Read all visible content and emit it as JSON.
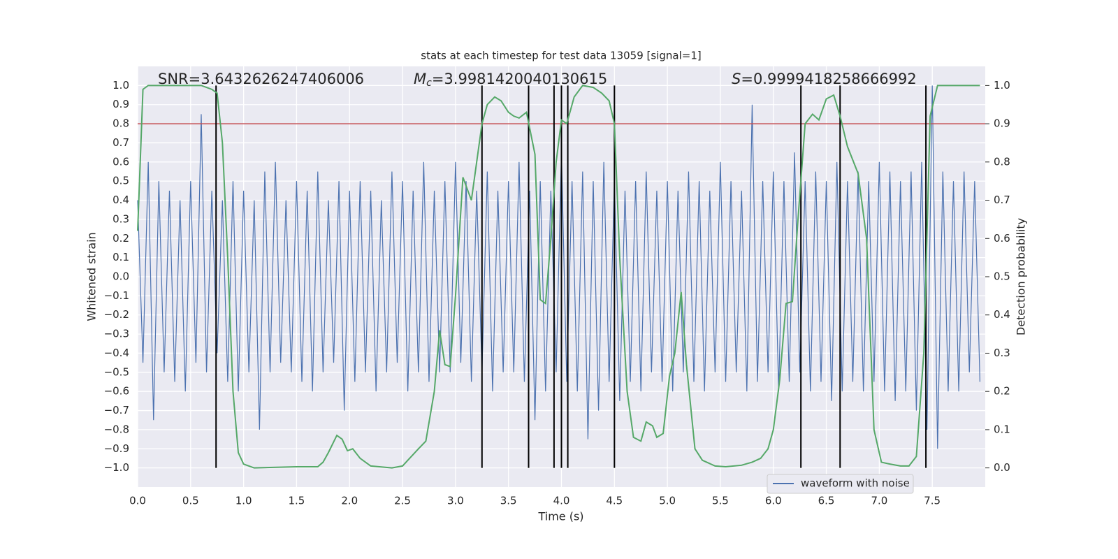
{
  "chart_data": {
    "type": "line",
    "title": "stats at each timestep for test data 13059 [signal=1]",
    "xlabel": "Time (s)",
    "ylabel": "Whitened strain",
    "y2label": "Detection probability",
    "annotations": {
      "snr": "SNR=3.6432626247406006",
      "mc": {
        "symbol": "M",
        "subscript": "c",
        "value": "=3.9981420040130615"
      },
      "s": {
        "symbol": "S",
        "value": "=0.9999418258666992"
      }
    },
    "xlim": [
      0,
      8
    ],
    "ylim": [
      -1.1,
      1.1
    ],
    "y2lim": [
      -0.05,
      1.05
    ],
    "xticks": [
      {
        "value": 0,
        "label": "0.0"
      },
      0.5,
      {
        "value": 1,
        "label": "1.0"
      },
      1.5,
      {
        "value": 2,
        "label": "2.0"
      },
      2.5,
      {
        "value": 3,
        "label": "3.0"
      },
      3.5,
      {
        "value": 4,
        "label": "4.0"
      },
      4.5,
      {
        "value": 5,
        "label": "5.0"
      },
      5.5,
      {
        "value": 6,
        "label": "6.0"
      },
      6.5,
      {
        "value": 7,
        "label": "7.0"
      },
      7.5
    ],
    "yticks": [
      {
        "value": -1,
        "label": "−1.0"
      },
      {
        "value": -0.9,
        "label": "−0.9"
      },
      {
        "value": -0.8,
        "label": "−0.8"
      },
      {
        "value": -0.7,
        "label": "−0.7"
      },
      {
        "value": -0.6,
        "label": "−0.6"
      },
      {
        "value": -0.5,
        "label": "−0.5"
      },
      {
        "value": -0.4,
        "label": "−0.4"
      },
      {
        "value": -0.3,
        "label": "−0.3"
      },
      {
        "value": -0.2,
        "label": "−0.2"
      },
      {
        "value": -0.1,
        "label": "−0.1"
      },
      {
        "value": 0,
        "label": "0.0"
      },
      0.1,
      0.2,
      0.3,
      0.4,
      0.5,
      0.6,
      0.7,
      0.8,
      0.9,
      {
        "value": 1,
        "label": "1.0"
      }
    ],
    "y2ticks": [
      {
        "value": 0,
        "label": "0.0"
      },
      0.1,
      0.2,
      0.3,
      0.4,
      0.5,
      0.6,
      0.7,
      0.8,
      0.9,
      {
        "value": 1,
        "label": "1.0"
      }
    ],
    "grid": true,
    "legend": "lower right",
    "hline": {
      "value": 0.8,
      "color": "#c44e52"
    },
    "vlines": {
      "x": [
        0.74,
        3.25,
        3.69,
        3.93,
        4.0,
        4.06,
        4.5,
        6.26,
        6.63,
        7.44
      ],
      "range": [
        -1,
        1
      ],
      "color": "#000000"
    },
    "series": [
      {
        "name": "waveform with noise",
        "color": "#4c72b0",
        "x": [
          0,
          0.05,
          0.1,
          0.15,
          0.2,
          0.25,
          0.3,
          0.35,
          0.4,
          0.45,
          0.5,
          0.55,
          0.6,
          0.65,
          0.7,
          0.75,
          0.8,
          0.85,
          0.9,
          0.95,
          1,
          1.05,
          1.1,
          1.15,
          1.2,
          1.25,
          1.3,
          1.35,
          1.4,
          1.45,
          1.5,
          1.55,
          1.6,
          1.65,
          1.7,
          1.75,
          1.8,
          1.85,
          1.9,
          1.95,
          2,
          2.05,
          2.1,
          2.15,
          2.2,
          2.25,
          2.3,
          2.35,
          2.4,
          2.45,
          2.5,
          2.55,
          2.6,
          2.65,
          2.7,
          2.75,
          2.8,
          2.85,
          2.9,
          2.95,
          3,
          3.05,
          3.1,
          3.15,
          3.2,
          3.25,
          3.3,
          3.35,
          3.4,
          3.45,
          3.5,
          3.55,
          3.6,
          3.65,
          3.7,
          3.75,
          3.8,
          3.85,
          3.9,
          3.95,
          4,
          4.05,
          4.1,
          4.15,
          4.2,
          4.25,
          4.3,
          4.35,
          4.4,
          4.45,
          4.5,
          4.55,
          4.6,
          4.65,
          4.7,
          4.75,
          4.8,
          4.85,
          4.9,
          4.95,
          5,
          5.05,
          5.1,
          5.15,
          5.2,
          5.25,
          5.3,
          5.35,
          5.4,
          5.45,
          5.5,
          5.55,
          5.6,
          5.65,
          5.7,
          5.75,
          5.8,
          5.85,
          5.9,
          5.95,
          6,
          6.05,
          6.1,
          6.15,
          6.2,
          6.25,
          6.3,
          6.35,
          6.4,
          6.45,
          6.5,
          6.55,
          6.6,
          6.65,
          6.7,
          6.75,
          6.8,
          6.85,
          6.9,
          6.95,
          7,
          7.05,
          7.1,
          7.15,
          7.2,
          7.25,
          7.3,
          7.35,
          7.4,
          7.45,
          7.5,
          7.55,
          7.6,
          7.65,
          7.7,
          7.75,
          7.8,
          7.85,
          7.9,
          7.95
        ],
        "values": [
          0.4,
          -0.45,
          0.6,
          -0.75,
          0.5,
          -0.5,
          0.45,
          -0.55,
          0.4,
          -0.6,
          0.5,
          -0.45,
          0.85,
          -0.5,
          0.45,
          -0.4,
          0.4,
          -0.55,
          0.5,
          -0.6,
          0.45,
          -0.5,
          0.4,
          -0.8,
          0.55,
          -0.5,
          0.6,
          -0.45,
          0.4,
          -0.5,
          0.5,
          -0.55,
          0.45,
          -0.6,
          0.55,
          -0.5,
          0.4,
          -0.45,
          0.5,
          -0.7,
          0.45,
          -0.55,
          0.5,
          -0.5,
          0.45,
          -0.6,
          0.4,
          -0.5,
          0.55,
          -0.45,
          0.5,
          -0.6,
          0.45,
          -0.5,
          0.6,
          -0.55,
          0.45,
          -0.5,
          0.5,
          -0.5,
          0.6,
          -0.45,
          0.5,
          -0.55,
          0.45,
          -0.5,
          0.55,
          -0.6,
          0.45,
          -0.5,
          0.5,
          -0.5,
          0.6,
          -0.55,
          0.45,
          -0.75,
          0.5,
          -0.6,
          0.45,
          -0.5,
          0.65,
          -0.55,
          0.5,
          -0.6,
          0.55,
          -0.85,
          0.5,
          -0.7,
          0.6,
          -0.55,
          0.5,
          -0.65,
          0.45,
          -0.55,
          0.5,
          -0.6,
          0.55,
          -0.5,
          0.45,
          -0.55,
          0.5,
          -0.6,
          0.45,
          -0.5,
          0.55,
          -0.55,
          0.5,
          -0.6,
          0.45,
          -0.5,
          0.6,
          -0.55,
          0.5,
          -0.5,
          0.45,
          -0.6,
          0.9,
          -0.55,
          0.5,
          -0.5,
          0.55,
          -0.6,
          0.5,
          -0.55,
          0.65,
          -0.5,
          0.5,
          -0.6,
          0.55,
          -0.55,
          0.5,
          -0.65,
          0.6,
          -0.6,
          0.5,
          -0.55,
          0.55,
          -0.6,
          0.5,
          -0.55,
          0.6,
          -0.6,
          0.55,
          -0.65,
          0.5,
          -0.6,
          0.55,
          -0.7,
          0.6,
          -0.8,
          1.0,
          -0.9,
          0.55,
          -0.6,
          0.5,
          -0.6,
          0.55,
          -0.5,
          0.5,
          -0.55
        ]
      },
      {
        "color": "#55a868",
        "axis": "y2",
        "x": [
          0,
          0.05,
          0.1,
          0.6,
          0.7,
          0.75,
          0.8,
          0.85,
          0.9,
          0.95,
          1,
          1.1,
          1.5,
          1.7,
          1.75,
          1.8,
          1.88,
          1.93,
          1.98,
          2.03,
          2.1,
          2.2,
          2.4,
          2.5,
          2.55,
          2.65,
          2.72,
          2.8,
          2.85,
          2.9,
          2.95,
          3,
          3.07,
          3.15,
          3.2,
          3.25,
          3.3,
          3.37,
          3.43,
          3.5,
          3.55,
          3.6,
          3.67,
          3.75,
          3.8,
          3.85,
          3.9,
          3.95,
          4,
          4.05,
          4.12,
          4.2,
          4.3,
          4.38,
          4.45,
          4.5,
          4.55,
          4.62,
          4.68,
          4.75,
          4.8,
          4.86,
          4.9,
          4.96,
          5.02,
          5.07,
          5.13,
          5.18,
          5.26,
          5.33,
          5.45,
          5.55,
          5.7,
          5.8,
          5.88,
          5.95,
          6,
          6.06,
          6.12,
          6.18,
          6.23,
          6.3,
          6.37,
          6.43,
          6.5,
          6.57,
          6.63,
          6.7,
          6.8,
          6.88,
          6.95,
          7.02,
          7.1,
          7.2,
          7.28,
          7.35,
          7.42,
          7.48,
          7.55,
          7.65,
          7.95
        ],
        "values": [
          0.62,
          0.99,
          1.0,
          1.0,
          0.99,
          0.98,
          0.85,
          0.55,
          0.2,
          0.04,
          0.01,
          0.0,
          0.003,
          0.003,
          0.015,
          0.04,
          0.085,
          0.075,
          0.045,
          0.05,
          0.025,
          0.005,
          0.0,
          0.005,
          0.02,
          0.05,
          0.07,
          0.2,
          0.36,
          0.27,
          0.265,
          0.45,
          0.76,
          0.7,
          0.8,
          0.9,
          0.95,
          0.97,
          0.96,
          0.93,
          0.92,
          0.915,
          0.93,
          0.82,
          0.44,
          0.43,
          0.6,
          0.8,
          0.91,
          0.9,
          0.97,
          1.0,
          0.995,
          0.98,
          0.96,
          0.9,
          0.55,
          0.2,
          0.08,
          0.07,
          0.12,
          0.11,
          0.08,
          0.09,
          0.24,
          0.3,
          0.46,
          0.27,
          0.05,
          0.02,
          0.005,
          0.003,
          0.007,
          0.015,
          0.025,
          0.05,
          0.1,
          0.23,
          0.43,
          0.435,
          0.64,
          0.9,
          0.925,
          0.91,
          0.965,
          0.975,
          0.92,
          0.84,
          0.77,
          0.6,
          0.1,
          0.015,
          0.01,
          0.005,
          0.005,
          0.03,
          0.3,
          0.92,
          1.0,
          1.0,
          1.0
        ]
      }
    ]
  }
}
